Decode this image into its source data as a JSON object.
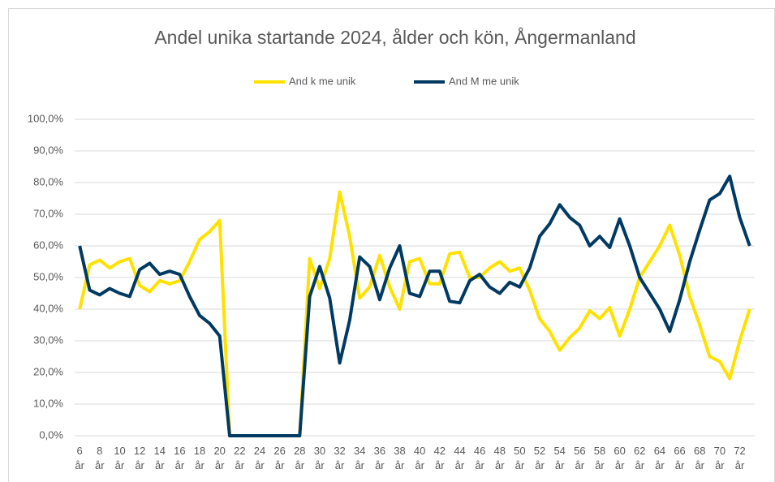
{
  "chart_data": {
    "type": "line",
    "title": "Andel unika startande 2024, ålder och kön, Ångermanland",
    "categories": [
      "6 år",
      null,
      "8 år",
      null,
      "10 år",
      null,
      "12 år",
      null,
      "14 år",
      null,
      "16 år",
      null,
      "18 år",
      null,
      "20 år",
      null,
      "22 år",
      null,
      "24 år",
      null,
      "26 år",
      null,
      "28 år",
      null,
      "30 år",
      null,
      "32 år",
      null,
      "34 år",
      null,
      "36 år",
      null,
      "38 år",
      null,
      "40 år",
      null,
      "42 år",
      null,
      "44 år",
      null,
      "46 år",
      null,
      "48 år",
      null,
      "50 år",
      null,
      "52 år",
      null,
      "54 år",
      null,
      "56 år",
      null,
      "58 år",
      null,
      "60 år",
      null,
      "62 år",
      null,
      "64 år",
      null,
      "66 år",
      null,
      "68 år",
      null,
      "70 år",
      null,
      "72 år",
      null
    ],
    "series": [
      {
        "name": "And k me unik",
        "color": "#FFE100",
        "values": [
          40,
          54,
          55.5,
          53,
          55,
          56,
          47.5,
          45.5,
          49,
          48,
          49,
          55,
          62,
          64.5,
          68,
          0,
          0,
          0,
          0,
          0,
          0,
          0,
          0,
          56,
          46.5,
          56,
          77,
          63,
          43.5,
          47,
          57,
          47,
          40,
          55,
          56,
          48,
          48,
          57.5,
          58,
          50,
          50,
          53,
          55,
          52,
          53,
          46,
          37,
          33,
          27,
          31,
          34,
          39.5,
          37,
          40.5,
          31.5,
          40,
          50,
          55,
          60,
          66.5,
          57,
          44,
          35,
          25,
          23.5,
          18,
          30,
          40
        ]
      },
      {
        "name": "And M me unik",
        "color": "#003A63",
        "values": [
          60,
          46,
          44.5,
          46.5,
          45,
          44,
          52.5,
          54.5,
          51,
          52,
          51,
          44,
          38,
          35.5,
          31.5,
          0,
          0,
          0,
          0,
          0,
          0,
          0,
          0,
          44,
          53.5,
          43.5,
          23,
          36.5,
          56.5,
          53.5,
          43,
          53,
          60,
          45,
          44,
          52,
          52,
          42.5,
          42,
          49,
          51,
          47,
          45,
          48.5,
          47,
          53,
          63,
          67,
          73,
          69,
          66.5,
          60,
          63,
          59.5,
          68.5,
          60,
          50,
          45,
          40,
          33,
          43,
          55,
          65,
          74.5,
          76.5,
          82,
          69,
          60
        ]
      }
    ],
    "ylim": [
      0,
      100
    ],
    "yticks": [
      {
        "value": 0,
        "label": "0,0%"
      },
      {
        "value": 10,
        "label": "10,0%"
      },
      {
        "value": 20,
        "label": "20,0%"
      },
      {
        "value": 30,
        "label": "30,0%"
      },
      {
        "value": 40,
        "label": "40,0%"
      },
      {
        "value": 50,
        "label": "50,0%"
      },
      {
        "value": 60,
        "label": "60,0%"
      },
      {
        "value": 70,
        "label": "70,0%"
      },
      {
        "value": 80,
        "label": "80,0%"
      },
      {
        "value": 90,
        "label": "90,0%"
      },
      {
        "value": 100,
        "label": "100,0%"
      }
    ],
    "grid": true,
    "legend": "top"
  }
}
